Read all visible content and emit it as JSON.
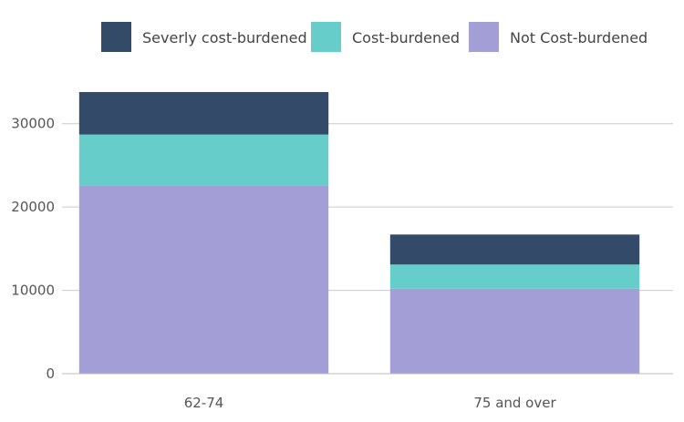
{
  "chart_data": {
    "type": "bar",
    "stacked": true,
    "categories": [
      "62-74",
      "75 and over"
    ],
    "series": [
      {
        "name": "Not Cost-burdened",
        "values": [
          22600,
          10200
        ],
        "color": "#a39fd6"
      },
      {
        "name": "Cost-burdened",
        "values": [
          6100,
          2900
        ],
        "color": "#66cdcb"
      },
      {
        "name": "Severly cost-burdened",
        "values": [
          5100,
          3600
        ],
        "color": "#334b69"
      }
    ],
    "legend_order": [
      "Severly cost-burdened",
      "Cost-burdened",
      "Not Cost-burdened"
    ],
    "legend_position": "top",
    "yticks": [
      0,
      10000,
      20000,
      30000
    ],
    "ylim": [
      0,
      35000
    ],
    "grid": true,
    "xlabel": "",
    "ylabel": "",
    "title": ""
  }
}
